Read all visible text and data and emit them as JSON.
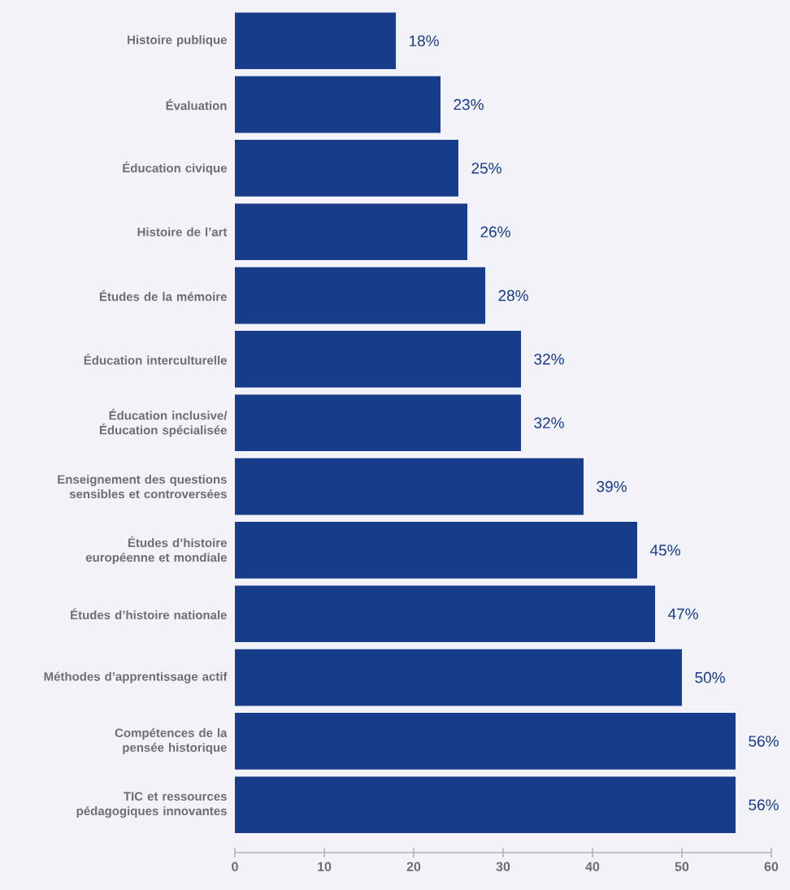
{
  "chart_data": {
    "type": "bar",
    "orientation": "horizontal",
    "color": "#173c8a",
    "categories": [
      "Histoire publique",
      "Évaluation",
      "Éducation civique",
      "Histoire de l’art",
      "Études de la mémoire",
      "Éducation interculturelle",
      "Éducation inclusive/ Éducation spécialisée",
      "Enseignement des questions sensibles et controversées",
      "Études d’histoire européenne et mondiale",
      "Études d’histoire nationale",
      "Méthodes d’apprentissage actif",
      "Compétences de la pensée historique",
      "TIC et ressources pédagogiques innovantes"
    ],
    "values": [
      18,
      23,
      25,
      26,
      28,
      32,
      32,
      39,
      45,
      47,
      50,
      56,
      56
    ],
    "value_labels": [
      "18%",
      "23%",
      "25%",
      "26%",
      "28%",
      "32%",
      "32%",
      "39%",
      "45%",
      "47%",
      "50%",
      "56%",
      "56%"
    ],
    "xlim": [
      0,
      60
    ],
    "xticks": [
      0,
      10,
      20,
      30,
      40,
      50,
      60
    ]
  }
}
